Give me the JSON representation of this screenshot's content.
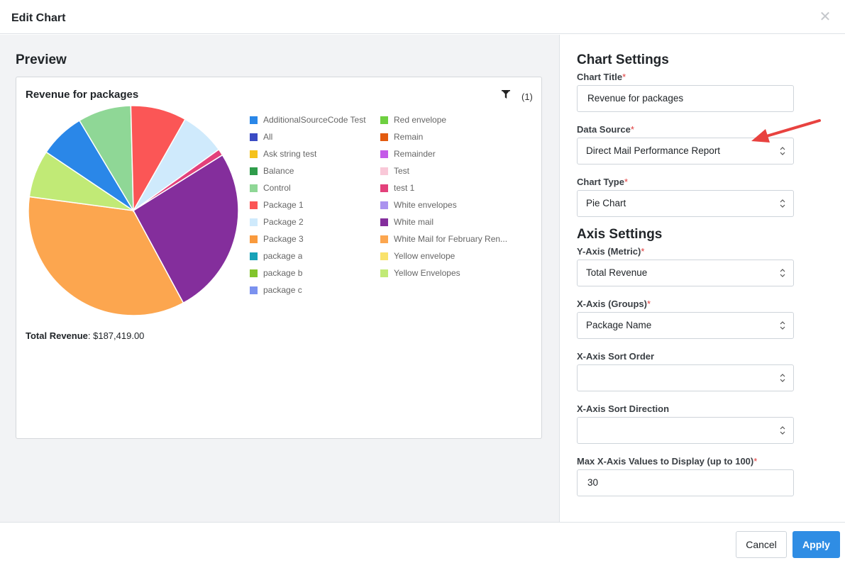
{
  "dialog": {
    "title": "Edit Chart",
    "close_icon": "close-icon"
  },
  "preview": {
    "heading": "Preview",
    "filter_icon": "filter-icon",
    "filter_count": "(1)",
    "total_label": "Total Revenue",
    "total_value": ": $187,419.00"
  },
  "chart_data": {
    "type": "pie",
    "title": "Revenue for packages",
    "slices": [
      {
        "label": "White mail",
        "value": 26.0,
        "color": "#842e9c"
      },
      {
        "label": "Package 3",
        "value": 35.0,
        "color": "#fca64f"
      },
      {
        "label": "Yellow Envelopes",
        "value": 7.3,
        "color": "#c1ea76"
      },
      {
        "label": "All",
        "value": 7.0,
        "color": "#2a87e8"
      },
      {
        "label": "Control",
        "value": 8.2,
        "color": "#8fd796"
      },
      {
        "label": "Package 1",
        "value": 8.6,
        "color": "#fb5656"
      },
      {
        "label": "Package 2",
        "value": 6.9,
        "color": "#cfeafc"
      },
      {
        "label": "test 1",
        "value": 1.0,
        "color": "#e3417b"
      }
    ],
    "legend": [
      {
        "label": "AdditionalSourceCode Test",
        "color": "#2a87e8"
      },
      {
        "label": "All",
        "color": "#3a4bc4"
      },
      {
        "label": "Ask string test",
        "color": "#f5c21b"
      },
      {
        "label": "Balance",
        "color": "#2f9c4b"
      },
      {
        "label": "Control",
        "color": "#8fd796"
      },
      {
        "label": "Package 1",
        "color": "#fb5656"
      },
      {
        "label": "Package 2",
        "color": "#cfeafc"
      },
      {
        "label": "Package 3",
        "color": "#f99a3d"
      },
      {
        "label": "package a",
        "color": "#17a2b8"
      },
      {
        "label": "package b",
        "color": "#82c42c"
      },
      {
        "label": "package c",
        "color": "#7b92ef"
      },
      {
        "label": "Red envelope",
        "color": "#6ed040"
      },
      {
        "label": "Remain",
        "color": "#e35b0f"
      },
      {
        "label": "Remainder",
        "color": "#c45be8"
      },
      {
        "label": "Test",
        "color": "#f9c8d8"
      },
      {
        "label": "test 1",
        "color": "#e3417b"
      },
      {
        "label": "White envelopes",
        "color": "#ab93ef"
      },
      {
        "label": "White mail",
        "color": "#842e9c"
      },
      {
        "label": "White Mail for February Ren...",
        "color": "#fca64f"
      },
      {
        "label": "Yellow envelope",
        "color": "#f9e26b"
      },
      {
        "label": "Yellow Envelopes",
        "color": "#c1ea76"
      }
    ]
  },
  "settings": {
    "chart_heading": "Chart Settings",
    "chart_title_label": "Chart Title",
    "chart_title_value": "Revenue for packages",
    "data_source_label": "Data Source",
    "data_source_value": "Direct Mail Performance Report",
    "chart_type_label": "Chart Type",
    "chart_type_value": "Pie Chart",
    "axis_heading": "Axis Settings",
    "y_axis_label": "Y-Axis (Metric)",
    "y_axis_value": "Total Revenue",
    "x_axis_label": "X-Axis (Groups)",
    "x_axis_value": "Package Name",
    "x_sort_order_label": "X-Axis Sort Order",
    "x_sort_order_value": "",
    "x_sort_dir_label": "X-Axis Sort Direction",
    "x_sort_dir_value": "",
    "max_values_label": "Max X-Axis Values to Display (up to 100)",
    "max_values_value": "30",
    "required_mark": "*"
  },
  "footer": {
    "cancel_label": "Cancel",
    "apply_label": "Apply"
  },
  "colors": {
    "accent": "#2f8de4",
    "required": "#e03a3a",
    "annotation_arrow": "#e8423f"
  }
}
